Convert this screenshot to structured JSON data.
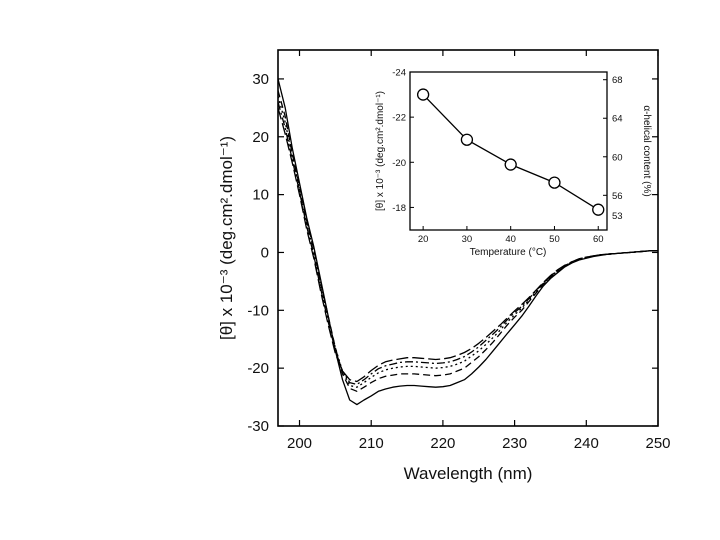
{
  "chart_data": [
    {
      "type": "line",
      "xlabel": "Wavelength (nm)",
      "ylabel": "[θ] x 10⁻³ (deg.cm².dmol⁻¹)",
      "xlim": [
        197,
        250
      ],
      "ylim": [
        -30,
        35
      ],
      "x_ticks": [
        200,
        210,
        220,
        230,
        240,
        250
      ],
      "x_tick_labels": [
        "200",
        "210",
        "220",
        "230",
        "240",
        "250"
      ],
      "y_ticks": [
        -30,
        -20,
        -10,
        0,
        10,
        20,
        30
      ],
      "y_tick_labels": [
        "-30",
        "-20",
        "-10",
        "0",
        "10",
        "20",
        "30"
      ],
      "grid": false,
      "legend": "none",
      "x": [
        197,
        198,
        199,
        200,
        201,
        202,
        203,
        204,
        205,
        206,
        207,
        208,
        209,
        210,
        211,
        212,
        213,
        214,
        215,
        216,
        217,
        218,
        219,
        220,
        221,
        222,
        223,
        224,
        225,
        226,
        227,
        228,
        229,
        230,
        231,
        232,
        233,
        234,
        235,
        236,
        237,
        238,
        239,
        240,
        241,
        242,
        243,
        244,
        245,
        246,
        247,
        248,
        249,
        250
      ],
      "series": [
        {
          "style": "solid",
          "values": [
            30,
            25,
            18,
            12,
            6,
            1,
            -5,
            -11,
            -17,
            -22,
            -25.5,
            -26.3,
            -25.5,
            -24.8,
            -24,
            -23.6,
            -23.3,
            -23.1,
            -23,
            -23,
            -23.1,
            -23.2,
            -23.3,
            -23.2,
            -23,
            -22.5,
            -22,
            -21,
            -19.8,
            -18.5,
            -17,
            -15.5,
            -14,
            -12.5,
            -11,
            -9.3,
            -7.5,
            -5.8,
            -4.5,
            -3.5,
            -2.5,
            -1.8,
            -1.3,
            -1,
            -0.7,
            -0.5,
            -0.3,
            -0.2,
            -0.1,
            0,
            0.1,
            0.2,
            0.3,
            0.3
          ]
        },
        {
          "style": "dashed",
          "values": [
            28,
            23.5,
            17,
            11.5,
            5.5,
            0.5,
            -5.5,
            -11,
            -16.5,
            -21,
            -23.5,
            -24,
            -23.3,
            -22.5,
            -21.8,
            -21.4,
            -21.2,
            -21,
            -21,
            -21,
            -21.1,
            -21.2,
            -21.3,
            -21.2,
            -21,
            -20.5,
            -20,
            -19,
            -18,
            -16.8,
            -15.5,
            -14,
            -12.5,
            -11.2,
            -10,
            -8.5,
            -7,
            -5.5,
            -4.3,
            -3.3,
            -2.4,
            -1.7,
            -1.2,
            -0.9,
            -0.6,
            -0.4,
            -0.3,
            -0.2,
            -0.1,
            0,
            0.1,
            0.2,
            0.3,
            0.3
          ]
        },
        {
          "style": "dotted",
          "values": [
            27,
            22.5,
            16.5,
            11,
            5,
            0,
            -6,
            -11.5,
            -16.5,
            -20.5,
            -23,
            -23.3,
            -22.5,
            -21.6,
            -20.8,
            -20.3,
            -20,
            -19.8,
            -19.7,
            -19.7,
            -19.8,
            -19.9,
            -20,
            -19.9,
            -19.7,
            -19.3,
            -18.8,
            -17.9,
            -17,
            -15.9,
            -14.7,
            -13.4,
            -12,
            -10.8,
            -9.6,
            -8.2,
            -6.8,
            -5.4,
            -4.2,
            -3.2,
            -2.3,
            -1.7,
            -1.2,
            -0.9,
            -0.6,
            -0.4,
            -0.3,
            -0.2,
            -0.1,
            0,
            0.1,
            0.2,
            0.3,
            0.3
          ]
        },
        {
          "style": "dashdot",
          "values": [
            26,
            21.5,
            16,
            10.5,
            4.5,
            -0.5,
            -6.5,
            -12,
            -17,
            -20.5,
            -22.5,
            -22.8,
            -22,
            -21,
            -20.1,
            -19.6,
            -19.3,
            -19,
            -18.9,
            -18.9,
            -19,
            -19.1,
            -19.2,
            -19.1,
            -18.9,
            -18.5,
            -18,
            -17.2,
            -16.3,
            -15.2,
            -14.1,
            -12.9,
            -11.6,
            -10.4,
            -9.3,
            -8,
            -6.6,
            -5.3,
            -4.1,
            -3.1,
            -2.3,
            -1.6,
            -1.1,
            -0.8,
            -0.6,
            -0.4,
            -0.3,
            -0.2,
            -0.1,
            0,
            0.1,
            0.2,
            0.3,
            0.3
          ]
        },
        {
          "style": "longdash",
          "values": [
            25,
            20.5,
            15.5,
            10,
            4,
            -1,
            -7,
            -12.5,
            -17.5,
            -20.5,
            -22,
            -22.3,
            -21.5,
            -20.4,
            -19.5,
            -18.9,
            -18.6,
            -18.4,
            -18.2,
            -18.2,
            -18.3,
            -18.4,
            -18.5,
            -18.4,
            -18.2,
            -17.8,
            -17.3,
            -16.6,
            -15.7,
            -14.7,
            -13.6,
            -12.5,
            -11.3,
            -10.1,
            -9,
            -7.8,
            -6.5,
            -5.2,
            -4,
            -3,
            -2.2,
            -1.6,
            -1.1,
            -0.8,
            -0.6,
            -0.4,
            -0.3,
            -0.2,
            -0.1,
            0,
            0.1,
            0.2,
            0.3,
            0.3
          ]
        }
      ]
    },
    {
      "type": "scatter",
      "xlabel": "Temperature (°C)",
      "ylabel": "[θ] x 10⁻³ (deg.cm².dmol⁻¹)",
      "y2label": "α-helical content (%)",
      "xlim": [
        17,
        62
      ],
      "ylim": [
        -17,
        -24
      ],
      "y2lim": [
        52.4,
        68.8
      ],
      "x_ticks": [
        20,
        30,
        40,
        50,
        60
      ],
      "x_tick_labels": [
        "20",
        "30",
        "40",
        "50",
        "60"
      ],
      "y_ticks": [
        -18,
        -20,
        -22,
        -24
      ],
      "y_tick_labels": [
        "-18",
        "-20",
        "-22",
        "-24"
      ],
      "y2_ticks": [
        56,
        60,
        64,
        68
      ],
      "y2_tick_labels": [
        "56",
        "60",
        "64",
        "68"
      ],
      "y2_extra_label": "53",
      "grid": false,
      "legend": "none",
      "x": [
        20,
        30,
        40,
        50,
        60
      ],
      "values": [
        -23,
        -21,
        -19.9,
        -19.1,
        -17.9
      ]
    }
  ]
}
